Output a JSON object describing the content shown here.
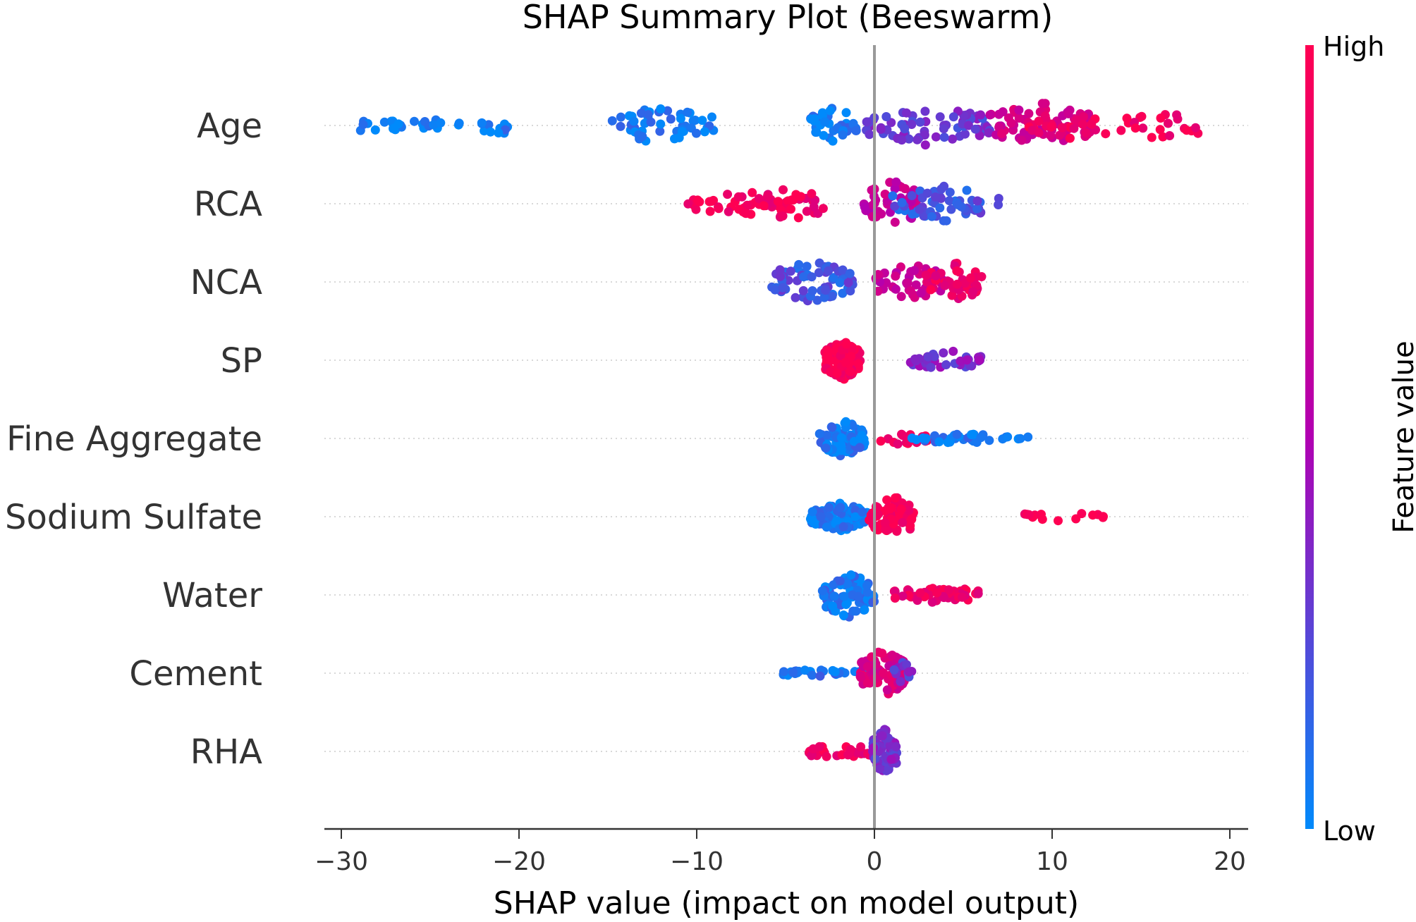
{
  "chart_data": {
    "type": "scatter",
    "subtype": "beeswarm",
    "title": "SHAP Summary Plot (Beeswarm)",
    "xlabel": "SHAP value (impact on model output)",
    "xlim": [
      -31,
      21
    ],
    "xticks": [
      -30,
      -20,
      -10,
      0,
      10,
      20
    ],
    "xtick_labels": [
      "−30",
      "−20",
      "−10",
      "0",
      "10",
      "20"
    ],
    "features": [
      "Age",
      "RCA",
      "NCA",
      "SP",
      "Fine Aggregate",
      "Sodium Sulfate",
      "Water",
      "Cement",
      "RHA"
    ],
    "colorbar": {
      "label": "Feature value",
      "high": "High",
      "low": "Low",
      "high_color": "#ff0052",
      "mid_color": "#b100b2",
      "low_color": "#008afb"
    },
    "zero_line_color": "#999999",
    "series": [
      {
        "name": "Age",
        "clusters": [
          {
            "c": -28,
            "w": 1.4,
            "n": 16,
            "v": 0.02,
            "h": 0.4
          },
          {
            "c": -25,
            "w": 1.8,
            "n": 12,
            "v": 0.03,
            "h": 0.3
          },
          {
            "c": -21.3,
            "w": 0.8,
            "n": 14,
            "v": 0.03,
            "h": 0.45
          },
          {
            "c": -12,
            "w": 3.0,
            "n": 50,
            "v": 0.04,
            "h": 0.75
          },
          {
            "c": -2.3,
            "w": 1.3,
            "n": 40,
            "v": 0.05,
            "h": 0.75
          },
          {
            "c": 3.0,
            "w": 3.5,
            "n": 70,
            "v": 0.3,
            "h": 0.8
          },
          {
            "c": 9.5,
            "w": 3.0,
            "n": 70,
            "v": 0.72,
            "h": 0.95
          },
          {
            "c": 13.5,
            "w": 5.0,
            "n": 45,
            "v": 0.93,
            "h": 0.7
          }
        ]
      },
      {
        "name": "RCA",
        "clusters": [
          {
            "c": -7.5,
            "w": 3.0,
            "n": 45,
            "v": 0.96,
            "h": 0.5
          },
          {
            "c": -4.5,
            "w": 1.8,
            "n": 30,
            "v": 0.9,
            "h": 0.75
          },
          {
            "c": 1.0,
            "w": 1.6,
            "n": 45,
            "v": 0.62,
            "h": 0.95
          },
          {
            "c": 4.0,
            "w": 3.0,
            "n": 60,
            "v": 0.18,
            "h": 0.7
          }
        ]
      },
      {
        "name": "NCA",
        "clusters": [
          {
            "c": -3.5,
            "w": 2.3,
            "n": 70,
            "v": 0.2,
            "h": 0.85
          },
          {
            "c": 2.0,
            "w": 2.0,
            "n": 45,
            "v": 0.65,
            "h": 0.75
          },
          {
            "c": 4.5,
            "w": 1.6,
            "n": 50,
            "v": 0.88,
            "h": 0.8
          }
        ]
      },
      {
        "name": "SP",
        "clusters": [
          {
            "c": -1.8,
            "w": 1.0,
            "n": 110,
            "v": 0.98,
            "h": 0.8
          },
          {
            "c": 4.0,
            "w": 2.0,
            "n": 40,
            "v": 0.35,
            "h": 0.4
          }
        ]
      },
      {
        "name": "Fine Aggregate",
        "clusters": [
          {
            "c": -1.8,
            "w": 1.3,
            "n": 90,
            "v": 0.05,
            "h": 0.75
          },
          {
            "c": 1.5,
            "w": 1.5,
            "n": 18,
            "v": 0.95,
            "h": 0.25
          },
          {
            "c": 4.8,
            "w": 2.8,
            "n": 35,
            "v": 0.05,
            "h": 0.2
          },
          {
            "c": 8.2,
            "w": 0.6,
            "n": 3,
            "v": 0.05,
            "h": 0.1
          }
        ]
      },
      {
        "name": "Sodium Sulfate",
        "clusters": [
          {
            "c": -2.0,
            "w": 1.6,
            "n": 90,
            "v": 0.04,
            "h": 0.6
          },
          {
            "c": 1.0,
            "w": 1.3,
            "n": 70,
            "v": 0.96,
            "h": 0.85
          },
          {
            "c": 10.5,
            "w": 2.6,
            "n": 14,
            "v": 0.98,
            "h": 0.2
          }
        ]
      },
      {
        "name": "Water",
        "clusters": [
          {
            "c": -1.5,
            "w": 1.5,
            "n": 90,
            "v": 0.06,
            "h": 0.9
          },
          {
            "c": 3.5,
            "w": 2.6,
            "n": 45,
            "v": 0.88,
            "h": 0.35
          }
        ]
      },
      {
        "name": "Cement",
        "clusters": [
          {
            "c": -3.0,
            "w": 2.4,
            "n": 28,
            "v": 0.08,
            "h": 0.15
          },
          {
            "c": 0.5,
            "w": 1.3,
            "n": 80,
            "v": 0.75,
            "h": 0.95
          },
          {
            "c": 1.6,
            "w": 0.5,
            "n": 12,
            "v": 0.3,
            "h": 0.5
          }
        ]
      },
      {
        "name": "RHA",
        "clusters": [
          {
            "c": -2.0,
            "w": 1.7,
            "n": 28,
            "v": 0.9,
            "h": 0.35
          },
          {
            "c": 0.6,
            "w": 0.7,
            "n": 70,
            "v": 0.35,
            "h": 0.95
          }
        ]
      }
    ]
  }
}
